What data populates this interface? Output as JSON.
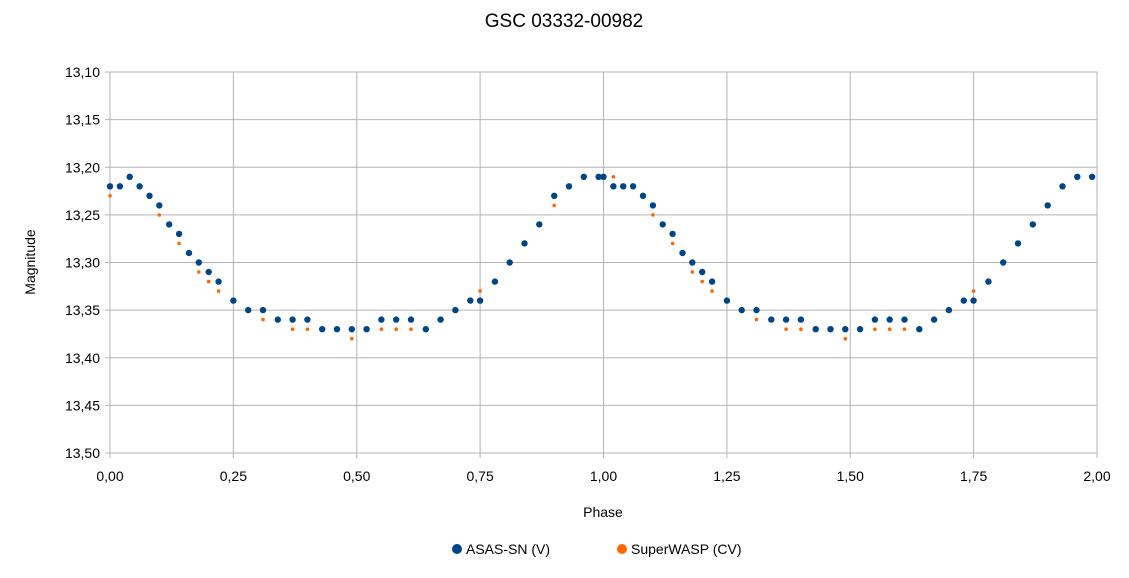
{
  "chart_data": {
    "type": "scatter",
    "title": "GSC 03332-00982",
    "xlabel": "Phase",
    "ylabel": "Magnitude",
    "xlim": [
      0,
      2
    ],
    "ylim": [
      13.1,
      13.5
    ],
    "y_inverted": true,
    "grid": true,
    "legend_position": "bottom",
    "x_ticks": [
      "0,00",
      "0,25",
      "0,50",
      "0,75",
      "1,00",
      "1,25",
      "1,50",
      "1,75",
      "2,00"
    ],
    "y_ticks": [
      "13,10",
      "13,15",
      "13,20",
      "13,25",
      "13,30",
      "13,35",
      "13,40",
      "13,45",
      "13,50"
    ],
    "series": [
      {
        "name": "ASAS-SN (V)",
        "color": "#004586",
        "x": [
          0.0,
          0.02,
          0.04,
          0.06,
          0.08,
          0.1,
          0.12,
          0.14,
          0.16,
          0.18,
          0.2,
          0.22,
          0.25,
          0.28,
          0.31,
          0.34,
          0.37,
          0.4,
          0.43,
          0.46,
          0.49,
          0.52,
          0.55,
          0.58,
          0.61,
          0.64,
          0.67,
          0.7,
          0.73,
          0.75,
          0.78,
          0.81,
          0.84,
          0.87,
          0.9,
          0.93,
          0.96,
          0.99,
          1.0,
          1.02,
          1.04,
          1.06,
          1.08,
          1.1,
          1.12,
          1.14,
          1.16,
          1.18,
          1.2,
          1.22,
          1.25,
          1.28,
          1.31,
          1.34,
          1.37,
          1.4,
          1.43,
          1.46,
          1.49,
          1.52,
          1.55,
          1.58,
          1.61,
          1.64,
          1.67,
          1.7,
          1.73,
          1.75,
          1.78,
          1.81,
          1.84,
          1.87,
          1.9,
          1.93,
          1.96,
          1.99
        ],
        "y": [
          13.22,
          13.22,
          13.21,
          13.22,
          13.23,
          13.24,
          13.26,
          13.27,
          13.29,
          13.3,
          13.31,
          13.32,
          13.34,
          13.35,
          13.35,
          13.36,
          13.36,
          13.36,
          13.37,
          13.37,
          13.37,
          13.37,
          13.36,
          13.36,
          13.36,
          13.37,
          13.36,
          13.35,
          13.34,
          13.34,
          13.32,
          13.3,
          13.28,
          13.26,
          13.23,
          13.22,
          13.21,
          13.21,
          13.21,
          13.22,
          13.22,
          13.22,
          13.23,
          13.24,
          13.26,
          13.27,
          13.29,
          13.3,
          13.31,
          13.32,
          13.34,
          13.35,
          13.35,
          13.36,
          13.36,
          13.36,
          13.37,
          13.37,
          13.37,
          13.37,
          13.36,
          13.36,
          13.36,
          13.37,
          13.36,
          13.35,
          13.34,
          13.34,
          13.32,
          13.3,
          13.28,
          13.26,
          13.24,
          13.22,
          13.21,
          13.21
        ]
      },
      {
        "name": "SuperWASP (CV)",
        "color": "#ff6600",
        "x": [
          0.0,
          0.02,
          0.04,
          0.06,
          0.08,
          0.1,
          0.12,
          0.14,
          0.16,
          0.18,
          0.2,
          0.22,
          0.25,
          0.28,
          0.31,
          0.34,
          0.37,
          0.4,
          0.43,
          0.46,
          0.49,
          0.52,
          0.55,
          0.58,
          0.61,
          0.64,
          0.67,
          0.7,
          0.73,
          0.75,
          0.78,
          0.81,
          0.84,
          0.87,
          0.9,
          0.93,
          0.96,
          0.99,
          1.0,
          1.02,
          1.04,
          1.06,
          1.08,
          1.1,
          1.12,
          1.14,
          1.16,
          1.18,
          1.2,
          1.22,
          1.25,
          1.28,
          1.31,
          1.34,
          1.37,
          1.4,
          1.43,
          1.46,
          1.49,
          1.52,
          1.55,
          1.58,
          1.61,
          1.64,
          1.67,
          1.7,
          1.73,
          1.75,
          1.78,
          1.81,
          1.84,
          1.87,
          1.9,
          1.93,
          1.96,
          1.99
        ],
        "y": [
          13.23,
          13.22,
          13.21,
          13.22,
          13.23,
          13.25,
          13.26,
          13.28,
          13.29,
          13.31,
          13.32,
          13.33,
          13.34,
          13.35,
          13.36,
          13.36,
          13.37,
          13.37,
          13.37,
          13.37,
          13.38,
          13.37,
          13.37,
          13.37,
          13.37,
          13.37,
          13.36,
          13.35,
          13.34,
          13.33,
          13.32,
          13.3,
          13.28,
          13.26,
          13.24,
          13.22,
          13.21,
          13.21,
          13.21,
          13.21,
          13.22,
          13.22,
          13.23,
          13.25,
          13.26,
          13.28,
          13.29,
          13.31,
          13.32,
          13.33,
          13.34,
          13.35,
          13.36,
          13.36,
          13.37,
          13.37,
          13.37,
          13.37,
          13.38,
          13.37,
          13.37,
          13.37,
          13.37,
          13.37,
          13.36,
          13.35,
          13.34,
          13.33,
          13.32,
          13.3,
          13.28,
          13.26,
          13.24,
          13.22,
          13.21,
          13.21
        ]
      }
    ]
  }
}
